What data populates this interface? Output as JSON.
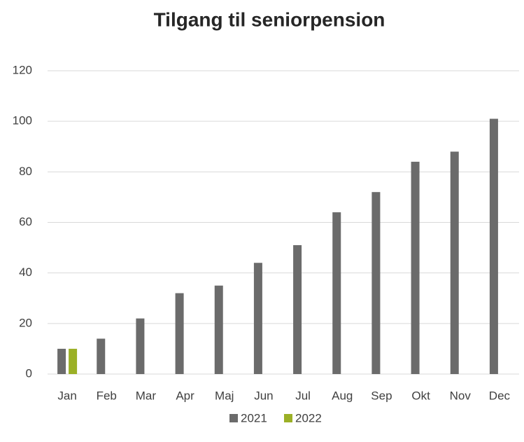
{
  "chart_data": {
    "type": "bar",
    "title": "Tilgang til seniorpension",
    "categories": [
      "Jan",
      "Feb",
      "Mar",
      "Apr",
      "Maj",
      "Jun",
      "Jul",
      "Aug",
      "Sep",
      "Okt",
      "Nov",
      "Dec"
    ],
    "series": [
      {
        "name": "2021",
        "color": "#6b6b6b",
        "values": [
          10,
          14,
          22,
          32,
          35,
          44,
          51,
          64,
          72,
          84,
          88,
          101
        ]
      },
      {
        "name": "2022",
        "color": "#9bb026",
        "values": [
          10,
          null,
          null,
          null,
          null,
          null,
          null,
          null,
          null,
          null,
          null,
          null
        ]
      }
    ],
    "ylim": [
      0,
      120
    ],
    "yticks": [
      0,
      20,
      40,
      60,
      80,
      100,
      120
    ],
    "grid": true,
    "legend": "bottom"
  }
}
